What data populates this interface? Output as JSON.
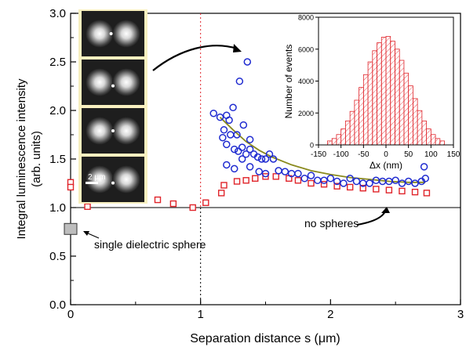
{
  "chart_data": [
    {
      "type": "scatter",
      "xlabel": "Separation distance s (μm)",
      "ylabel": "Integral luminescence intensity",
      "ylabel_line2": "(arb. units)",
      "xlim": [
        0,
        3
      ],
      "ylim": [
        0,
        3
      ],
      "xticks": [
        "0",
        "1",
        "2",
        "3"
      ],
      "yticks": [
        "0.0",
        "0.5",
        "1.0",
        "1.5",
        "2.0",
        "2.5",
        "3.0"
      ],
      "grid": false,
      "colors": {
        "circles": "#1f2bd0",
        "squares": "#e0242a",
        "fit": "#8a8a1e",
        "vline": "#e0242a",
        "sphere_marker": "#bdbdbd",
        "image_frame": "#f8f0c0"
      },
      "series": [
        {
          "marker": "circle",
          "x": [
            1.1,
            1.15,
            1.18,
            1.2,
            1.22,
            1.25,
            1.28,
            1.3,
            1.33,
            1.36,
            1.38,
            1.17,
            1.2,
            1.23,
            1.26,
            1.29,
            1.32,
            1.35,
            1.38,
            1.41,
            1.44,
            1.47,
            1.5,
            1.53,
            1.56,
            1.2,
            1.26,
            1.32,
            1.38,
            1.45,
            1.5,
            1.6,
            1.65,
            1.7,
            1.75,
            1.8,
            1.85,
            1.9,
            1.95,
            2.0,
            2.05,
            2.1,
            2.15,
            2.2,
            2.25,
            2.3,
            2.35,
            2.4,
            2.45,
            2.5,
            2.55,
            2.6,
            2.65,
            2.7,
            2.72,
            2.73
          ],
          "y": [
            1.97,
            1.93,
            1.8,
            1.95,
            1.9,
            2.03,
            1.75,
            2.3,
            1.85,
            2.5,
            1.7,
            1.72,
            1.65,
            1.75,
            1.6,
            1.58,
            1.62,
            1.55,
            1.6,
            1.55,
            1.52,
            1.5,
            1.5,
            1.55,
            1.5,
            1.44,
            1.4,
            1.5,
            1.42,
            1.37,
            1.35,
            1.38,
            1.37,
            1.35,
            1.35,
            1.3,
            1.33,
            1.28,
            1.28,
            1.3,
            1.27,
            1.25,
            1.3,
            1.27,
            1.25,
            1.25,
            1.28,
            1.27,
            1.27,
            1.28,
            1.25,
            1.27,
            1.25,
            1.27,
            1.42,
            1.3
          ]
        },
        {
          "marker": "square",
          "x": [
            0.0,
            0.0,
            0.13,
            0.25,
            0.4,
            0.54,
            0.67,
            0.79,
            0.94,
            1.04,
            1.16,
            1.18,
            1.28,
            1.35,
            1.42,
            1.5,
            1.58,
            1.68,
            1.75,
            1.85,
            1.95,
            2.05,
            2.15,
            2.25,
            2.35,
            2.45,
            2.55,
            2.65,
            2.74
          ],
          "y": [
            1.26,
            1.21,
            1.01,
            1.1,
            1.14,
            1.14,
            1.08,
            1.04,
            1.0,
            1.05,
            1.15,
            1.23,
            1.27,
            1.28,
            1.3,
            1.32,
            1.32,
            1.3,
            1.28,
            1.25,
            1.24,
            1.22,
            1.21,
            1.2,
            1.19,
            1.18,
            1.17,
            1.16,
            1.15
          ]
        }
      ],
      "fit_curve": {
        "x": [
          1.15,
          1.25,
          1.35,
          1.45,
          1.55,
          1.7,
          1.85,
          2.0,
          2.15,
          2.3,
          2.45,
          2.6,
          2.73
        ],
        "y": [
          1.93,
          1.8,
          1.68,
          1.59,
          1.52,
          1.44,
          1.38,
          1.34,
          1.31,
          1.29,
          1.27,
          1.26,
          1.26
        ]
      },
      "hline_y": 1.0,
      "vlines_x": [
        1.0
      ],
      "single_sphere": {
        "x": 0.0,
        "y": 0.78
      },
      "annotations": {
        "no_spheres": "no spheres",
        "single_sphere": "single dielectric sphere",
        "scale_bar": "2 μm"
      }
    },
    {
      "type": "bar",
      "xlabel": "Δx (nm)",
      "ylabel": "Number of events",
      "xlim": [
        -150,
        150
      ],
      "ylim": [
        0,
        8000
      ],
      "xticks": [
        -150,
        -100,
        -50,
        0,
        50,
        100,
        150
      ],
      "yticks": [
        0,
        2000,
        4000,
        6000,
        8000
      ],
      "bin_width": 10,
      "bin_centers": [
        -125,
        -115,
        -105,
        -95,
        -85,
        -75,
        -65,
        -55,
        -45,
        -35,
        -25,
        -15,
        -5,
        5,
        15,
        25,
        35,
        45,
        55,
        65,
        75,
        85,
        95,
        105,
        115,
        125
      ],
      "values": [
        250,
        400,
        650,
        1000,
        1500,
        2100,
        2800,
        3600,
        4400,
        5200,
        5900,
        6400,
        6750,
        6800,
        6500,
        6000,
        5300,
        4500,
        3700,
        2900,
        2150,
        1500,
        1000,
        650,
        400,
        250
      ],
      "color": "#e0242a"
    }
  ]
}
